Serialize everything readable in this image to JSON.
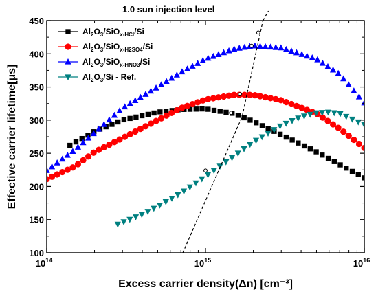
{
  "chart_data": {
    "type": "scatter",
    "title": "",
    "xlabel": "Excess carrier density(Δn) [cm⁻³]",
    "ylabel": "Effective carrier lifetime[μs]",
    "xscale": "log",
    "xlim": [
      100000000000000.0,
      1e+16
    ],
    "ylim": [
      100,
      450
    ],
    "x_tick_labels": [
      {
        "value": 100000000000000.0,
        "base": "10",
        "exp": "14"
      },
      {
        "value": 1000000000000000.0,
        "base": "10",
        "exp": "15"
      },
      {
        "value": 1e+16,
        "base": "10",
        "exp": "16"
      }
    ],
    "y_ticks": [
      100,
      150,
      200,
      250,
      300,
      350,
      400,
      450
    ],
    "legend_position": "top-left",
    "annotation": {
      "text": "1.0 sun injection level",
      "line_points": [
        [
          720000000000000.0,
          100
        ],
        [
          1700000000000000.0,
          305
        ],
        [
          2300000000000000.0,
          450
        ]
      ],
      "markers": [
        [
          1000000000000000.0,
          224
        ],
        [
          1450000000000000.0,
          311
        ],
        [
          1650000000000000.0,
          339
        ],
        [
          1950000000000000.0,
          412
        ],
        [
          2150000000000000.0,
          432
        ]
      ]
    },
    "series": [
      {
        "name": "Al2O3/SiOx-HCl/Si",
        "legend_parts": [
          [
            "Al",
            "n"
          ],
          [
            "2",
            "sub"
          ],
          [
            "O",
            "n"
          ],
          [
            "3",
            "sub"
          ],
          [
            "/SiO",
            "n"
          ],
          [
            "x-HCl",
            "sub"
          ],
          [
            "/Si",
            "n"
          ]
        ],
        "marker": "square",
        "color": "#000000",
        "x_range": [
          140000000000000.0,
          1e+16
        ],
        "n_points": 50,
        "points": [
          [
            140000000000000.0,
            262
          ],
          [
            200000000000000.0,
            283
          ],
          [
            300000000000000.0,
            300
          ],
          [
            500000000000000.0,
            312
          ],
          [
            700000000000000.0,
            316
          ],
          [
            1000000000000000.0,
            317
          ],
          [
            1500000000000000.0,
            310
          ],
          [
            2000000000000000.0,
            298
          ],
          [
            3000000000000000.0,
            278
          ],
          [
            5000000000000000.0,
            252
          ],
          [
            7000000000000000.0,
            233
          ],
          [
            1e+16,
            213
          ]
        ]
      },
      {
        "name": "Al2O3/SiOx-H2SO4/Si",
        "legend_parts": [
          [
            "Al",
            "n"
          ],
          [
            "2",
            "sub"
          ],
          [
            "O",
            "n"
          ],
          [
            "3",
            "sub"
          ],
          [
            "/SiO",
            "n"
          ],
          [
            "x-H2SO4",
            "sub"
          ],
          [
            "/Si",
            "n"
          ]
        ],
        "marker": "circle",
        "color": "#ff0000",
        "x_range": [
          100000000000000.0,
          1e+16
        ],
        "n_points": 62,
        "points": [
          [
            100000000000000.0,
            211
          ],
          [
            150000000000000.0,
            230
          ],
          [
            200000000000000.0,
            252
          ],
          [
            300000000000000.0,
            273
          ],
          [
            500000000000000.0,
            300
          ],
          [
            700000000000000.0,
            318
          ],
          [
            1000000000000000.0,
            331
          ],
          [
            1500000000000000.0,
            338
          ],
          [
            2000000000000000.0,
            338
          ],
          [
            3000000000000000.0,
            330
          ],
          [
            5000000000000000.0,
            310
          ],
          [
            7000000000000000.0,
            287
          ],
          [
            1e+16,
            258
          ]
        ]
      },
      {
        "name": "Al2O3/SiOx-HNO3/Si",
        "legend_parts": [
          [
            "Al",
            "n"
          ],
          [
            "2",
            "sub"
          ],
          [
            "O",
            "n"
          ],
          [
            "3",
            "sub"
          ],
          [
            "/SiO",
            "n"
          ],
          [
            "x-HNO3",
            "sub"
          ],
          [
            "/Si",
            "n"
          ]
        ],
        "marker": "triangle-up",
        "color": "#0000ff",
        "x_range": [
          100000000000000.0,
          1e+16
        ],
        "n_points": 62,
        "points": [
          [
            100000000000000.0,
            224
          ],
          [
            150000000000000.0,
            255
          ],
          [
            200000000000000.0,
            281
          ],
          [
            300000000000000.0,
            318
          ],
          [
            500000000000000.0,
            350
          ],
          [
            700000000000000.0,
            372
          ],
          [
            1000000000000000.0,
            392
          ],
          [
            1500000000000000.0,
            407
          ],
          [
            2000000000000000.0,
            412
          ],
          [
            3000000000000000.0,
            409
          ],
          [
            5000000000000000.0,
            392
          ],
          [
            7000000000000000.0,
            369
          ],
          [
            1e+16,
            326
          ]
        ]
      },
      {
        "name": "Al2O3/Si - Ref.",
        "legend_parts": [
          [
            "Al",
            "n"
          ],
          [
            "2",
            "sub"
          ],
          [
            "O",
            "n"
          ],
          [
            "3",
            "sub"
          ],
          [
            "/Si - Ref.",
            "n"
          ]
        ],
        "marker": "triangle-down",
        "color": "#008080",
        "x_range": [
          280000000000000.0,
          1e+16
        ],
        "n_points": 42,
        "points": [
          [
            280000000000000.0,
            143
          ],
          [
            400000000000000.0,
            158
          ],
          [
            500000000000000.0,
            170
          ],
          [
            700000000000000.0,
            190
          ],
          [
            1000000000000000.0,
            215
          ],
          [
            1500000000000000.0,
            245
          ],
          [
            2000000000000000.0,
            267
          ],
          [
            3000000000000000.0,
            292
          ],
          [
            4000000000000000.0,
            305
          ],
          [
            5000000000000000.0,
            311
          ],
          [
            6000000000000000.0,
            312
          ],
          [
            7000000000000000.0,
            310
          ],
          [
            1e+16,
            293
          ]
        ]
      }
    ]
  }
}
